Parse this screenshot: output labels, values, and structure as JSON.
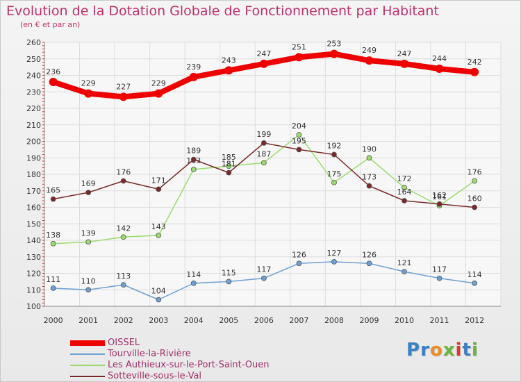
{
  "title": "Evolution de la Dotation Globale de Fonctionnement par Habitant",
  "subtitle": "(en € et par an)",
  "brand": {
    "text": "Proxiti",
    "letter_colors": [
      "#3b7fc4",
      "#3b7fc4",
      "#f08a24",
      "#6cb33f",
      "#e6332a",
      "#3b7fc4",
      "#6cb33f"
    ]
  },
  "chart_data": {
    "type": "line",
    "title": "Evolution de la Dotation Globale de Fonctionnement par Habitant",
    "subtitle": "(en € et par an)",
    "xlabel": "",
    "ylabel": "",
    "ylim": [
      100,
      260
    ],
    "yticks": [
      100,
      110,
      120,
      130,
      140,
      150,
      160,
      170,
      180,
      190,
      200,
      210,
      220,
      230,
      240,
      250,
      260
    ],
    "grid": true,
    "legend_position": "bottom-left",
    "x": [
      "2000",
      "2001",
      "2002",
      "2003",
      "2004",
      "2005",
      "2006",
      "2007",
      "2008",
      "2009",
      "2010",
      "2011",
      "2012"
    ],
    "series": [
      {
        "name": "OISSEL",
        "color": "#ee0000",
        "values": [
          236,
          229,
          227,
          229,
          239,
          243,
          247,
          251,
          253,
          249,
          247,
          244,
          242
        ]
      },
      {
        "name": "Tourville-la-Rivière",
        "color": "#6e9fd2",
        "values": [
          111,
          110,
          113,
          104,
          114,
          115,
          117,
          126,
          127,
          126,
          121,
          117,
          114
        ]
      },
      {
        "name": "Les Authieux-sur-le-Port-Saint-Ouen",
        "color": "#9bdb6e",
        "values": [
          138,
          139,
          142,
          143,
          183,
          185,
          187,
          204,
          175,
          190,
          172,
          161,
          176
        ]
      },
      {
        "name": "Sotteville-sous-le-Val",
        "color": "#7a2a2a",
        "values": [
          165,
          169,
          176,
          171,
          189,
          181,
          199,
          195,
          192,
          173,
          164,
          162,
          160
        ]
      }
    ]
  }
}
